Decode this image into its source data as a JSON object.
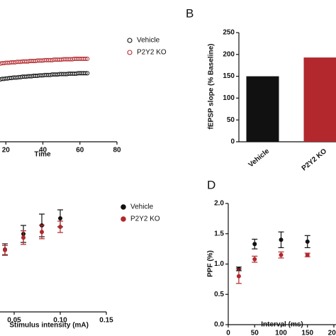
{
  "chart_data": [
    {
      "type": "scatter",
      "xlabel": "Time",
      "filled": false,
      "x": [
        17,
        18,
        19,
        20,
        21,
        22,
        23,
        24,
        25,
        26,
        27,
        28,
        29,
        30,
        31,
        32,
        33,
        34,
        35,
        36,
        37,
        38,
        39,
        40,
        41,
        42,
        43,
        44,
        45,
        46,
        47,
        48,
        49,
        50,
        51,
        52,
        53,
        54,
        55,
        56,
        57,
        58,
        59,
        60,
        61,
        62,
        63,
        64
      ],
      "xlim": [
        0,
        80
      ],
      "xticks": [
        20,
        40,
        60,
        80
      ],
      "ylim": [
        0,
        250
      ],
      "series": [
        {
          "name": "Vehicle",
          "color": "#111111",
          "values": [
            143,
            144,
            144,
            145,
            145,
            146,
            146,
            147,
            147,
            147,
            148,
            148,
            149,
            149,
            149,
            150,
            150,
            150,
            151,
            151,
            151,
            152,
            152,
            152,
            153,
            153,
            153,
            153,
            154,
            154,
            154,
            154,
            155,
            155,
            155,
            155,
            155,
            156,
            156,
            156,
            156,
            156,
            157,
            157,
            157,
            157,
            157,
            157
          ]
        },
        {
          "name": "P2Y2 KO",
          "color": "#b2282d",
          "values": [
            179,
            180,
            180,
            181,
            181,
            181,
            182,
            182,
            182,
            183,
            183,
            183,
            184,
            184,
            184,
            184,
            185,
            185,
            185,
            185,
            186,
            186,
            186,
            186,
            187,
            187,
            187,
            187,
            187,
            188,
            188,
            188,
            188,
            188,
            189,
            189,
            189,
            189,
            189,
            189,
            190,
            190,
            190,
            190,
            190,
            190,
            190,
            190
          ]
        }
      ]
    },
    {
      "type": "bar",
      "panel": "B",
      "ylabel": "fEPSP slope (% Baseline)",
      "categories": [
        "Vehicle",
        "P2Y2 KO"
      ],
      "values": [
        150,
        193
      ],
      "colors": [
        "#111111",
        "#b2282d"
      ],
      "ylim": [
        0,
        250
      ],
      "yticks": [
        0,
        50,
        100,
        150,
        200,
        250
      ]
    },
    {
      "type": "errorbar",
      "xlabel": "Stimulus intensity (mA)",
      "filled": true,
      "xlim": [
        0.03,
        0.15
      ],
      "xticks": [
        0.05,
        {
          "value": 0.1,
          "label": "0.10"
        },
        0.15
      ],
      "ylim": [
        0,
        2
      ],
      "series": [
        {
          "name": "Vehicle",
          "color": "#111111",
          "x": [
            0.04,
            0.06,
            0.08,
            0.1
          ],
          "values": [
            1.1,
            1.375,
            1.525,
            1.65
          ],
          "errors": [
            0.1,
            0.15,
            0.2,
            0.15
          ]
        },
        {
          "name": "P2Y2 KO",
          "color": "#b2282d",
          "x": [
            0.04,
            0.06,
            0.08,
            0.1
          ],
          "values": [
            1.09,
            1.31,
            1.41,
            1.5
          ],
          "errors": [
            0.08,
            0.12,
            0.12,
            0.1
          ]
        }
      ]
    },
    {
      "type": "errorbar",
      "panel": "D",
      "xlabel": "Interval (ms)",
      "ylabel": "PPF (%)",
      "filled": true,
      "xlim": [
        0,
        200
      ],
      "xticks": [
        0,
        50,
        100,
        150,
        200
      ],
      "ylim": [
        0,
        2
      ],
      "yticks": [
        {
          "value": 0,
          "label": "0.0"
        },
        {
          "value": 0.5,
          "label": "0.5"
        },
        {
          "value": 1,
          "label": "1.0"
        },
        {
          "value": 1.5,
          "label": "1.5"
        },
        {
          "value": 2,
          "label": "2.0"
        }
      ],
      "series": [
        {
          "name": "Vehicle",
          "color": "#111111",
          "x": [
            20,
            50,
            100,
            150
          ],
          "values": [
            0.92,
            1.33,
            1.4,
            1.37
          ],
          "errors": [
            0.03,
            0.08,
            0.13,
            0.1
          ]
        },
        {
          "name": "P2Y2 KO",
          "color": "#b2282d",
          "x": [
            20,
            50,
            100,
            150
          ],
          "values": [
            0.8,
            1.08,
            1.15,
            1.15
          ],
          "errors": [
            0.12,
            0.05,
            0.05,
            0.03
          ]
        }
      ]
    }
  ]
}
